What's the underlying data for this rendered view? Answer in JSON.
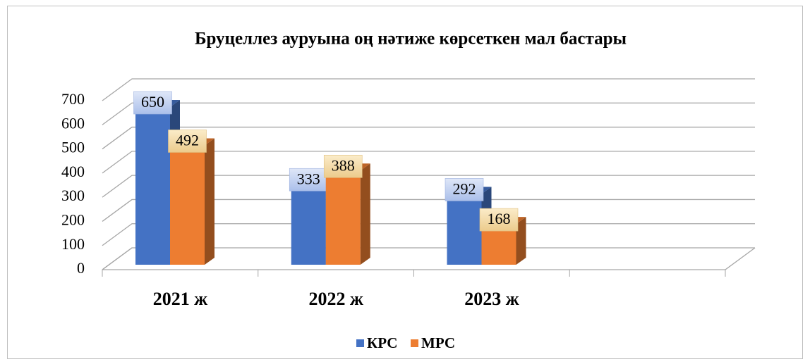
{
  "chart_data": {
    "type": "bar3d",
    "title": "Бруцеллез ауруына оң нәтиже көрсеткен мал бастары",
    "categories": [
      "2021 ж",
      "2022 ж",
      "2023 ж",
      null
    ],
    "series": [
      {
        "name": "КРС",
        "color": "#4472c4",
        "values": [
          650,
          333,
          292,
          null
        ]
      },
      {
        "name": "МРС",
        "color": "#ed7d31",
        "values": [
          492,
          388,
          168,
          null
        ]
      }
    ],
    "ylim": [
      0,
      700
    ],
    "yticks": [
      0,
      100,
      200,
      300,
      400,
      500,
      600,
      700
    ],
    "grid": true,
    "legend": "bottom"
  }
}
